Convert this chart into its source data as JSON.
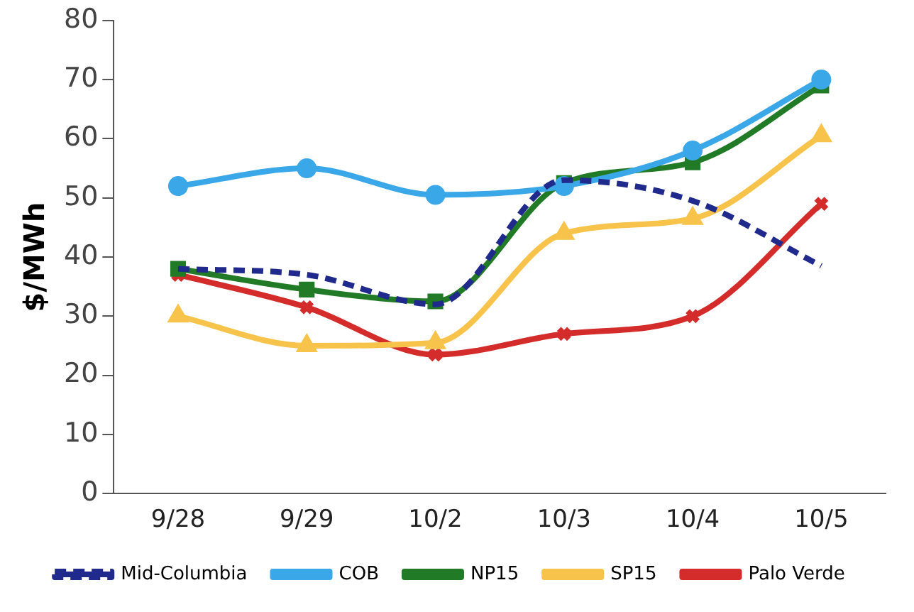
{
  "chart_data": {
    "type": "line",
    "ylabel": "$/MWh",
    "categories": [
      "9/28",
      "9/29",
      "10/2",
      "10/3",
      "10/4",
      "10/5"
    ],
    "ylim": [
      0,
      80
    ],
    "yticks": [
      0,
      10,
      20,
      30,
      40,
      50,
      60,
      70,
      80
    ],
    "grid": false,
    "legend": "bottom",
    "series": [
      {
        "name": "Mid-Columbia",
        "color": "#1f2a8c",
        "values": [
          38,
          37,
          32,
          53,
          49.5,
          38.5
        ],
        "marker": "none",
        "line_style": "dashed"
      },
      {
        "name": "COB",
        "color": "#3aa7e8",
        "values": [
          52,
          55,
          50.5,
          52,
          58,
          70
        ],
        "marker": "circle",
        "line_style": "solid"
      },
      {
        "name": "NP15",
        "color": "#217a26",
        "values": [
          38,
          34.5,
          32.5,
          52.5,
          56,
          69
        ],
        "marker": "square",
        "line_style": "solid"
      },
      {
        "name": "SP15",
        "color": "#f7c34a",
        "values": [
          30,
          25,
          25.5,
          44,
          46.5,
          60.5
        ],
        "marker": "triangle",
        "line_style": "solid"
      },
      {
        "name": "Palo Verde",
        "color": "#d42b2b",
        "values": [
          37,
          31.5,
          23.5,
          27,
          30,
          49
        ],
        "marker": "cross",
        "line_style": "solid"
      }
    ]
  }
}
